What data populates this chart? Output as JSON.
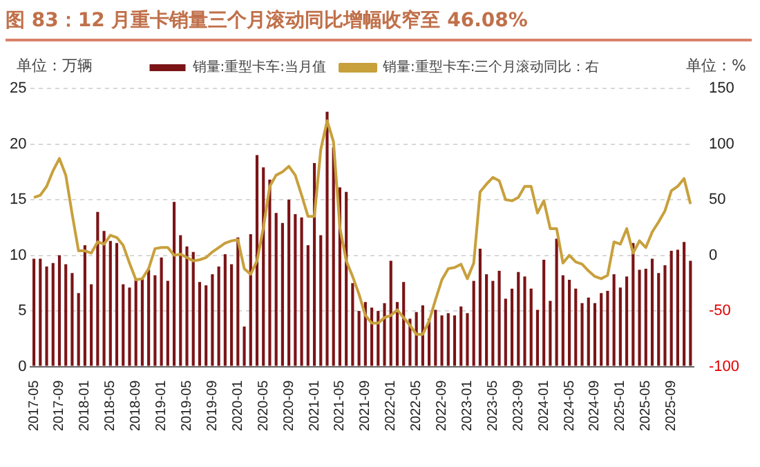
{
  "chart_data": {
    "type": "bar",
    "title": "图 83：12 月重卡销量三个月滚动同比增幅收窄至 46.08%",
    "ylabel": "单位：万辆",
    "y2label": "单位：%",
    "categories": [
      "2017-05",
      null,
      null,
      null,
      "2017-09",
      null,
      null,
      null,
      "2018-01",
      null,
      null,
      null,
      "2018-05",
      null,
      null,
      null,
      "2018-09",
      null,
      null,
      null,
      "2019-01",
      null,
      null,
      null,
      "2019-05",
      null,
      null,
      null,
      "2019-09",
      null,
      null,
      null,
      "2020-01",
      null,
      null,
      null,
      "2020-05",
      null,
      null,
      null,
      "2020-09",
      null,
      null,
      null,
      "2021-01",
      null,
      null,
      null,
      "2021-05",
      null,
      null,
      null,
      "2021-09",
      null,
      null,
      null,
      "2022-01",
      null,
      null,
      null,
      "2022-05",
      null,
      null,
      null,
      "2022-09",
      null,
      null,
      null,
      "2023-01",
      null,
      null,
      null,
      "2023-05",
      null,
      null,
      null,
      "2023-09",
      null,
      null,
      null,
      "2024-01",
      null,
      null,
      null,
      "2024-05",
      null,
      null,
      null,
      "2024-09",
      null,
      null,
      null,
      "2025-01",
      null,
      null,
      null,
      "2025-05",
      null,
      null,
      null,
      "2025-09",
      null,
      null,
      null
    ],
    "series": [
      {
        "name": "销量:重型卡车:当月值",
        "color": "#7b1416",
        "values": [
          9.7,
          9.7,
          9.0,
          9.3,
          10.0,
          9.2,
          8.4,
          6.6,
          10.9,
          7.4,
          13.9,
          12.2,
          11.3,
          11.1,
          7.4,
          7.1,
          7.8,
          7.9,
          8.7,
          8.2,
          9.8,
          7.7,
          14.8,
          11.8,
          10.8,
          10.3,
          7.6,
          7.3,
          8.3,
          9.0,
          10.1,
          9.2,
          11.6,
          3.6,
          11.9,
          19.0,
          17.9,
          16.8,
          13.8,
          12.9,
          15.0,
          13.7,
          13.4,
          10.9,
          18.3,
          11.8,
          22.9,
          19.7,
          16.1,
          15.7,
          7.5,
          5.0,
          5.8,
          5.3,
          5.0,
          5.7,
          9.5,
          5.8,
          7.6,
          4.3,
          4.9,
          5.5,
          4.3,
          5.1,
          4.6,
          4.8,
          4.6,
          5.4,
          4.8,
          7.7,
          10.6,
          8.3,
          7.7,
          8.6,
          6.1,
          7.0,
          8.5,
          8.1,
          7.0,
          5.1,
          9.6,
          5.9,
          11.5,
          8.2,
          7.8,
          7.0,
          5.7,
          6.2,
          5.7,
          6.6,
          6.8,
          8.3,
          7.1,
          8.1,
          11.1,
          8.7,
          8.8,
          9.7,
          8.4,
          9.1,
          10.4,
          10.5,
          11.2,
          9.5
        ]
      },
      {
        "name": "销量:重型卡车:三个月滚动同比：右",
        "type": "line",
        "axis": "y2",
        "color": "#c8a03c",
        "values": [
          52,
          54,
          62,
          76,
          87,
          72,
          37,
          4,
          4,
          2,
          12,
          10,
          18,
          16,
          9,
          -7,
          -22,
          -21,
          -12,
          6,
          7,
          7,
          0,
          1,
          -2,
          -5,
          -4,
          -2,
          3,
          7,
          11,
          13,
          14,
          -12,
          -17,
          -5,
          25,
          62,
          72,
          75,
          80,
          72,
          54,
          35,
          35,
          95,
          121,
          102,
          25,
          -5,
          -19,
          -35,
          -54,
          -61,
          -61,
          -56,
          -54,
          -49,
          -56,
          -63,
          -71,
          -71,
          -59,
          -40,
          -22,
          -12,
          -11,
          -8,
          -21,
          -7,
          57,
          64,
          70,
          67,
          50,
          49,
          52,
          62,
          62,
          38,
          49,
          24,
          24,
          -7,
          0,
          -6,
          -8,
          -14,
          -19,
          -21,
          -18,
          12,
          10,
          24,
          2,
          13,
          7,
          21,
          30,
          40,
          58,
          62,
          69,
          46.08
        ]
      }
    ],
    "ylim": [
      0,
      25
    ],
    "yticks": [
      0,
      5,
      10,
      15,
      20,
      25
    ],
    "y2lim": [
      -100,
      150
    ],
    "y2ticks": [
      -100,
      -50,
      0,
      50,
      100,
      150
    ],
    "grid": "y",
    "legend": "top",
    "marker": "none",
    "line_style": "solid"
  }
}
